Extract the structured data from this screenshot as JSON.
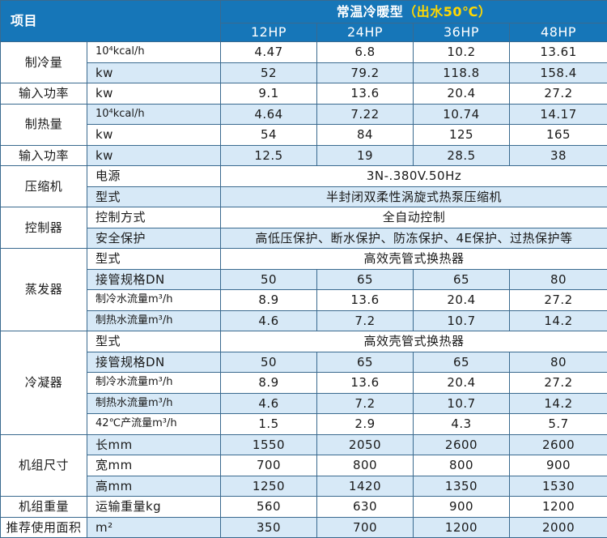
{
  "header": {
    "item_label": "项目",
    "title": "常温冷暖型",
    "title_paren": "（出水50℃）",
    "models": [
      "12HP",
      "24HP",
      "36HP",
      "48HP"
    ]
  },
  "groups": [
    {
      "label": "制冷量",
      "rows": [
        {
          "sub": "10⁴kcal/h",
          "cells": [
            "4.47",
            "6.8",
            "10.2",
            "13.61"
          ],
          "shade": false
        },
        {
          "sub": "kw",
          "cells": [
            "52",
            "79.2",
            "118.8",
            "158.4"
          ],
          "shade": true
        }
      ]
    },
    {
      "label": "输入功率",
      "rows": [
        {
          "sub": "kw",
          "cells": [
            "9.1",
            "13.6",
            "20.4",
            "27.2"
          ],
          "shade": false
        }
      ]
    },
    {
      "label": "制热量",
      "rows": [
        {
          "sub": "10⁴kcal/h",
          "cells": [
            "4.64",
            "7.22",
            "10.74",
            "14.17"
          ],
          "shade": true
        },
        {
          "sub": "kw",
          "cells": [
            "54",
            "84",
            "125",
            "165"
          ],
          "shade": false
        }
      ]
    },
    {
      "label": "输入功率",
      "rows": [
        {
          "sub": "kw",
          "cells": [
            "12.5",
            "19",
            "28.5",
            "38"
          ],
          "shade": true
        }
      ]
    },
    {
      "label": "压缩机",
      "rows": [
        {
          "sub": "电源",
          "span": "3N-.380V.50Hz",
          "shade": false
        },
        {
          "sub": "型式",
          "span": "半封闭双柔性涡旋式热泵压缩机",
          "shade": true
        }
      ]
    },
    {
      "label": "控制器",
      "rows": [
        {
          "sub": "控制方式",
          "span": "全自动控制",
          "shade": false
        },
        {
          "sub": "安全保护",
          "span": "高低压保护、断水保护、防冻保护、4E保护、过热保护等",
          "shade": true
        }
      ]
    },
    {
      "label": "蒸发器",
      "rows": [
        {
          "sub": "型式",
          "span": "高效壳管式换热器",
          "shade": false
        },
        {
          "sub": "接管规格DN",
          "cells": [
            "50",
            "65",
            "65",
            "80"
          ],
          "shade": true
        },
        {
          "sub": "制冷水流量m³/h",
          "cells": [
            "8.9",
            "13.6",
            "20.4",
            "27.2"
          ],
          "shade": false
        },
        {
          "sub": "制热水流量m³/h",
          "cells": [
            "4.6",
            "7.2",
            "10.7",
            "14.2"
          ],
          "shade": true
        }
      ]
    },
    {
      "label": "冷凝器",
      "rows": [
        {
          "sub": "型式",
          "span": "高效壳管式换热器",
          "shade": false
        },
        {
          "sub": "接管规格DN",
          "cells": [
            "50",
            "65",
            "65",
            "80"
          ],
          "shade": true
        },
        {
          "sub": "制冷水流量m³/h",
          "cells": [
            "8.9",
            "13.6",
            "20.4",
            "27.2"
          ],
          "shade": false
        },
        {
          "sub": "制热水流量m³/h",
          "cells": [
            "4.6",
            "7.2",
            "10.7",
            "14.2"
          ],
          "shade": true
        },
        {
          "sub": "42℃产流量m³/h",
          "cells": [
            "1.5",
            "2.9",
            "4.3",
            "5.7"
          ],
          "shade": false
        }
      ]
    },
    {
      "label": "机组尺寸",
      "rows": [
        {
          "sub": "长mm",
          "cells": [
            "1550",
            "2050",
            "2600",
            "2600"
          ],
          "shade": true
        },
        {
          "sub": "宽mm",
          "cells": [
            "700",
            "800",
            "800",
            "900"
          ],
          "shade": false
        },
        {
          "sub": "高mm",
          "cells": [
            "1250",
            "1420",
            "1350",
            "1530"
          ],
          "shade": true
        }
      ]
    },
    {
      "label": "机组重量",
      "rows": [
        {
          "sub": "运输重量kg",
          "cells": [
            "560",
            "630",
            "900",
            "1200"
          ],
          "shade": false
        }
      ]
    },
    {
      "label": "推荐使用面积",
      "rows": [
        {
          "sub": "m²",
          "cells": [
            "350",
            "700",
            "1200",
            "2000"
          ],
          "shade": true
        }
      ]
    }
  ]
}
